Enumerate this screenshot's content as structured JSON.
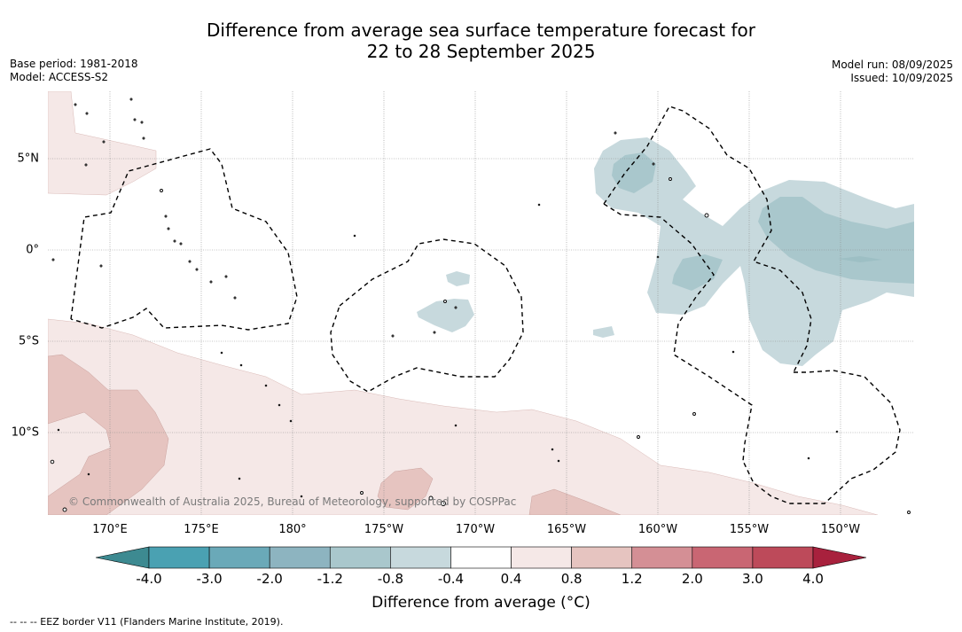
{
  "title_line1": "Difference from average sea surface temperature forecast for",
  "title_line2": "22 to 28 September 2025",
  "base_period": "Base period: 1981-2018",
  "model": "Model: ACCESS-S2",
  "model_run": "Model run: 08/09/2025",
  "issued": "Issued: 10/09/2025",
  "lon_labels": [
    "170°E",
    "175°E",
    "180°",
    "175°W",
    "170°W",
    "165°W",
    "160°W",
    "155°W",
    "150°W"
  ],
  "lat_labels": [
    "5°N",
    "0°",
    "5°S",
    "10°S"
  ],
  "copyright": "© Commonwealth of Australia 2025, Bureau of Meteorology, supported by COSPPac",
  "colorbar": {
    "label": "Difference from average (°C)",
    "ticks": [
      "-4.0",
      "-3.0",
      "-2.0",
      "-1.2",
      "-0.8",
      "-0.4",
      "0.4",
      "0.8",
      "1.2",
      "2.0",
      "3.0",
      "4.0"
    ],
    "colors": [
      "#4aa1b2",
      "#6aa9b8",
      "#8db4c0",
      "#a9c7cc",
      "#c7d9dd",
      "#ffffff",
      "#f5e8e7",
      "#e6c4c0",
      "#d48f95",
      "#c96673",
      "#bd4a5a"
    ],
    "extend_low_color": "#3d8a91",
    "extend_high_color": "#a8213d"
  },
  "footer": "--  --  -- EEZ border V11 (Flanders Marine Institute, 2019)."
}
